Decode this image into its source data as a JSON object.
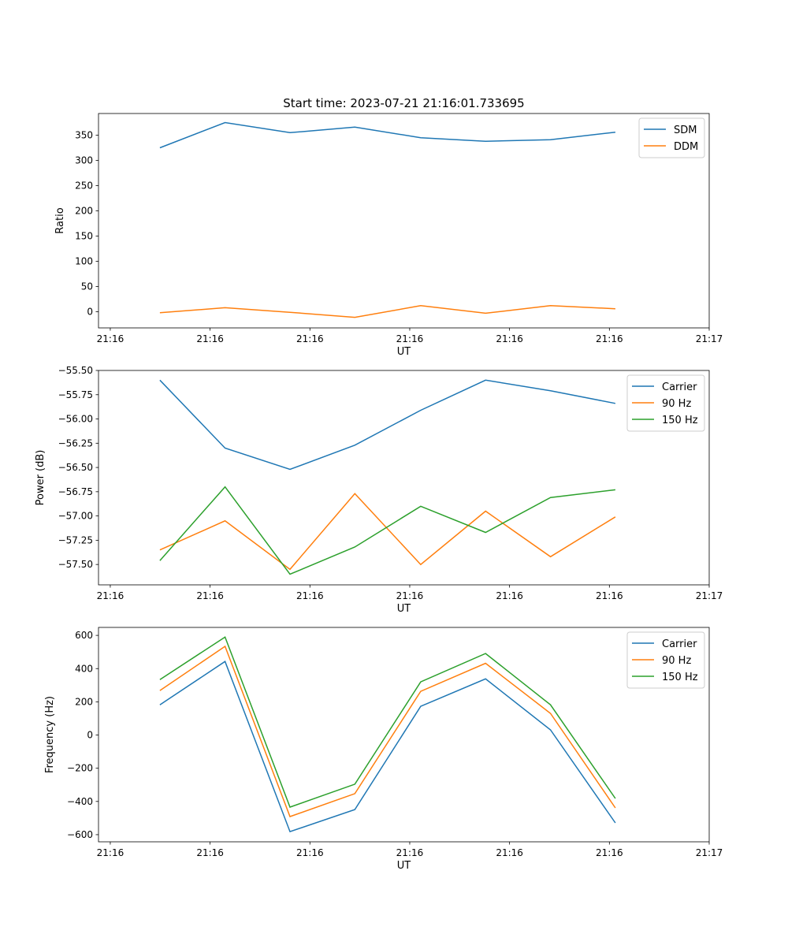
{
  "chart_data": [
    {
      "type": "line",
      "title": "Start time: 2023-07-21 21:16:01.733695",
      "xlabel": "UT",
      "ylabel": "Ratio",
      "x_seconds_after_2116": [
        4.97,
        11.5,
        18.0,
        24.5,
        31.1,
        37.6,
        44.1,
        50.6
      ],
      "xlim": [
        -1.18,
        60
      ],
      "xticks": [
        0,
        10,
        20,
        30,
        40,
        50,
        60
      ],
      "xtick_labels": [
        "21:16",
        "21:16",
        "21:16",
        "21:16",
        "21:16",
        "21:16",
        "21:17"
      ],
      "ylim": [
        -32,
        393
      ],
      "yticks": [
        0,
        50,
        100,
        150,
        200,
        250,
        300,
        350
      ],
      "ytick_labels": [
        "0",
        "50",
        "100",
        "150",
        "200",
        "250",
        "300",
        "350"
      ],
      "legend": "top-right",
      "series": [
        {
          "name": "SDM",
          "color": "#1f77b4",
          "values": [
            325,
            375,
            355,
            366,
            345,
            338,
            341,
            356
          ]
        },
        {
          "name": "DDM",
          "color": "#ff7f0e",
          "values": [
            -2,
            8,
            -1,
            -11,
            12,
            -3,
            12,
            6
          ]
        }
      ]
    },
    {
      "type": "line",
      "title": "",
      "xlabel": "UT",
      "ylabel": "Power (dB)",
      "x_seconds_after_2116": [
        4.97,
        11.5,
        18.0,
        24.5,
        31.1,
        37.6,
        44.1,
        50.6
      ],
      "xlim": [
        -1.18,
        60
      ],
      "xticks": [
        0,
        10,
        20,
        30,
        40,
        50,
        60
      ],
      "xtick_labels": [
        "21:16",
        "21:16",
        "21:16",
        "21:16",
        "21:16",
        "21:16",
        "21:17"
      ],
      "ylim": [
        -57.71,
        -55.5
      ],
      "yticks": [
        -55.5,
        -55.75,
        -56.0,
        -56.25,
        -56.5,
        -56.75,
        -57.0,
        -57.25,
        -57.5
      ],
      "ytick_labels": [
        "−55.50",
        "−55.75",
        "−56.00",
        "−56.25",
        "−56.50",
        "−56.75",
        "−57.00",
        "−57.25",
        "−57.50"
      ],
      "legend": "top-right",
      "series": [
        {
          "name": "Carrier",
          "color": "#1f77b4",
          "values": [
            -55.6,
            -56.3,
            -56.52,
            -56.27,
            -55.91,
            -55.6,
            -55.71,
            -55.84
          ]
        },
        {
          "name": "90 Hz",
          "color": "#ff7f0e",
          "values": [
            -57.35,
            -57.05,
            -57.55,
            -56.77,
            -57.5,
            -56.95,
            -57.42,
            -57.01
          ]
        },
        {
          "name": "150 Hz",
          "color": "#2ca02c",
          "values": [
            -57.46,
            -56.7,
            -57.6,
            -57.32,
            -56.9,
            -57.17,
            -56.81,
            -56.73
          ]
        }
      ]
    },
    {
      "type": "line",
      "title": "",
      "xlabel": "UT",
      "ylabel": "Frequency (Hz)",
      "x_seconds_after_2116": [
        4.97,
        11.5,
        18.0,
        24.5,
        31.1,
        37.6,
        44.1,
        50.6
      ],
      "xlim": [
        -1.18,
        60
      ],
      "xticks": [
        0,
        10,
        20,
        30,
        40,
        50,
        60
      ],
      "xtick_labels": [
        "21:16",
        "21:16",
        "21:16",
        "21:16",
        "21:16",
        "21:16",
        "21:17"
      ],
      "ylim": [
        -643,
        648
      ],
      "yticks": [
        600,
        400,
        200,
        0,
        -200,
        -400,
        -600
      ],
      "ytick_labels": [
        "600",
        "400",
        "200",
        "0",
        "−200",
        "−400",
        "−600"
      ],
      "legend": "top-right",
      "series": [
        {
          "name": "Carrier",
          "color": "#1f77b4",
          "values": [
            182,
            443,
            -582,
            -449,
            173,
            338,
            31,
            -529
          ]
        },
        {
          "name": "90 Hz",
          "color": "#ff7f0e",
          "values": [
            268,
            534,
            -491,
            -353,
            263,
            432,
            130,
            -439
          ]
        },
        {
          "name": "150 Hz",
          "color": "#2ca02c",
          "values": [
            334,
            590,
            -434,
            -296,
            320,
            491,
            182,
            -382
          ]
        }
      ]
    }
  ]
}
